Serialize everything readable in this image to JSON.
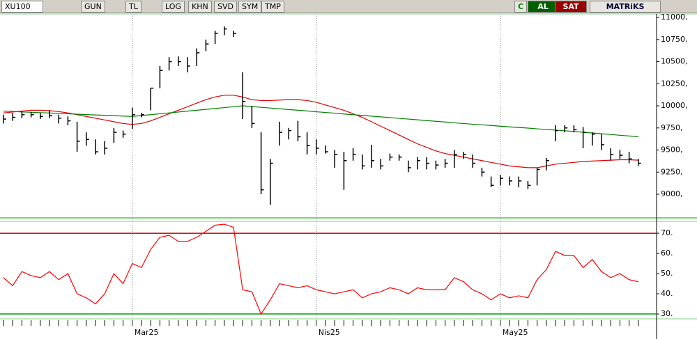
{
  "toolbar": {
    "symbol": "XU100",
    "buttons": [
      "GUN",
      "TL",
      "LOG",
      "KHN",
      "SVD",
      "SYM",
      "TMP"
    ],
    "c": "C",
    "buy": "AL",
    "sell": "SAT",
    "brand": "MATRiKS"
  },
  "chart_data": [
    {
      "type": "ohlc",
      "ylim": [
        8740,
        11040
      ],
      "yticks": [
        {
          "value": 9000,
          "label": "9000,"
        },
        {
          "value": 9250,
          "label": "9250,"
        },
        {
          "value": 9500,
          "label": "9500,"
        },
        {
          "value": 9750,
          "label": "9750,"
        },
        {
          "value": 10000,
          "label": "10000,"
        },
        {
          "value": 10250,
          "label": "10250,"
        },
        {
          "value": 10500,
          "label": "10500,"
        },
        {
          "value": 10750,
          "label": "10750,"
        },
        {
          "value": 11000,
          "label": "11000,"
        }
      ],
      "categories": [
        null,
        null,
        null,
        null,
        null,
        null,
        null,
        null,
        null,
        null,
        null,
        null,
        null,
        null,
        "Mar25",
        null,
        null,
        null,
        null,
        null,
        null,
        null,
        null,
        null,
        null,
        null,
        null,
        null,
        null,
        null,
        null,
        null,
        null,
        null,
        "Nis25",
        null,
        null,
        null,
        null,
        null,
        null,
        null,
        null,
        null,
        null,
        null,
        null,
        null,
        null,
        null,
        null,
        null,
        null,
        null,
        "May25",
        null,
        null,
        null,
        null,
        null,
        null,
        null,
        null,
        null,
        null,
        null,
        null,
        null,
        null,
        null
      ],
      "color": "#000000",
      "high": [
        9900,
        9920,
        9940,
        9930,
        9920,
        9950,
        9900,
        9880,
        9820,
        9700,
        9620,
        9600,
        9750,
        9720,
        9980,
        9920,
        10200,
        10450,
        10550,
        10560,
        10550,
        10650,
        10750,
        10850,
        10900,
        10850,
        10380,
        10000,
        9700,
        9400,
        9820,
        9750,
        9830,
        9700,
        9620,
        9550,
        9500,
        9480,
        9520,
        9450,
        9560,
        9400,
        9460,
        9450,
        9380,
        9420,
        9420,
        9380,
        9400,
        9500,
        9480,
        9450,
        9300,
        9200,
        9220,
        9200,
        9200,
        9150,
        9300,
        9410,
        9780,
        9780,
        9780,
        9760,
        9700,
        9680,
        9520,
        9500,
        9480,
        9400
      ],
      "low": [
        9800,
        9830,
        9860,
        9870,
        9850,
        9860,
        9800,
        9780,
        9480,
        9550,
        9450,
        9450,
        9580,
        9640,
        9740,
        9870,
        9950,
        10200,
        10400,
        10450,
        10380,
        10450,
        10620,
        10700,
        10800,
        10780,
        9850,
        9750,
        9000,
        8880,
        9550,
        9620,
        9600,
        9450,
        9450,
        9460,
        9300,
        9050,
        9380,
        9280,
        9300,
        9280,
        9380,
        9380,
        9250,
        9280,
        9280,
        9280,
        9300,
        9300,
        9400,
        9300,
        9200,
        9080,
        9100,
        9100,
        9080,
        9060,
        9100,
        9270,
        9600,
        9700,
        9700,
        9520,
        9550,
        9500,
        9380,
        9400,
        9350,
        9320
      ],
      "close": [
        9850,
        9870,
        9900,
        9900,
        9880,
        9890,
        9860,
        9830,
        9600,
        9620,
        9480,
        9520,
        9700,
        9680,
        9900,
        9900,
        10200,
        10400,
        10500,
        10500,
        10450,
        10600,
        10700,
        10820,
        10870,
        10820,
        10050,
        9800,
        9050,
        9350,
        9700,
        9720,
        9650,
        9550,
        9520,
        9480,
        9450,
        9380,
        9450,
        9320,
        9380,
        9320,
        9420,
        9420,
        9300,
        9380,
        9350,
        9330,
        9350,
        9450,
        9450,
        9350,
        9250,
        9100,
        9180,
        9150,
        9150,
        9100,
        9280,
        9380,
        9720,
        9750,
        9730,
        9700,
        9680,
        9560,
        9450,
        9440,
        9400,
        9350
      ],
      "lines": [
        {
          "color": "#e00000",
          "values": [
            9920,
            9930,
            9940,
            9950,
            9950,
            9945,
            9935,
            9920,
            9900,
            9880,
            9860,
            9840,
            9820,
            9800,
            9790,
            9800,
            9830,
            9870,
            9910,
            9950,
            9990,
            10030,
            10070,
            10100,
            10120,
            10120,
            10100,
            10070,
            10060,
            10060,
            10065,
            10070,
            10070,
            10060,
            10040,
            10010,
            9980,
            9950,
            9910,
            9870,
            9820,
            9770,
            9720,
            9670,
            9620,
            9570,
            9530,
            9490,
            9460,
            9440,
            9420,
            9400,
            9380,
            9360,
            9340,
            9320,
            9310,
            9300,
            9300,
            9320,
            9340,
            9350,
            9360,
            9370,
            9375,
            9380,
            9385,
            9390,
            9390,
            9385
          ]
        },
        {
          "color": "#008000",
          "values": [
            9940,
            9936,
            9931,
            9927,
            9923,
            9919,
            9914,
            9910,
            9906,
            9901,
            9897,
            9893,
            9889,
            9884,
            9880,
            9890,
            9900,
            9910,
            9920,
            9930,
            9940,
            9950,
            9960,
            9970,
            9980,
            9990,
            10000,
            9992,
            9983,
            9975,
            9967,
            9958,
            9950,
            9942,
            9933,
            9925,
            9917,
            9908,
            9900,
            9892,
            9883,
            9875,
            9867,
            9858,
            9850,
            9842,
            9833,
            9825,
            9817,
            9808,
            9800,
            9792,
            9785,
            9778,
            9770,
            9762,
            9755,
            9748,
            9740,
            9732,
            9725,
            9718,
            9710,
            9701,
            9693,
            9684,
            9676,
            9667,
            9659,
            9650
          ]
        }
      ]
    },
    {
      "type": "line",
      "ylim": [
        27.6,
        75.9
      ],
      "yticks": [
        {
          "value": 30,
          "label": "30."
        },
        {
          "value": 40,
          "label": "40."
        },
        {
          "value": 50,
          "label": "50."
        },
        {
          "value": 60,
          "label": "60."
        },
        {
          "value": 70,
          "label": "70."
        }
      ],
      "levels": [
        {
          "value": 70,
          "color": "#c00000"
        },
        {
          "value": 30,
          "color": "#00a000"
        }
      ],
      "color": "#ff0000",
      "values": [
        48,
        44,
        51,
        49,
        48,
        51,
        47,
        50,
        40,
        38,
        35,
        40,
        50,
        45,
        55,
        53,
        62,
        68,
        69,
        66,
        66,
        68,
        71,
        74,
        74.5,
        73,
        42,
        41,
        30,
        37,
        45,
        44,
        43,
        44,
        42,
        41,
        40,
        41,
        42,
        38,
        40,
        41,
        43,
        42,
        40,
        43,
        42,
        42,
        42,
        48,
        46,
        42,
        40,
        37,
        40,
        38,
        39,
        38,
        47,
        52,
        61,
        59,
        59,
        53,
        57,
        51,
        48,
        50,
        47,
        46
      ]
    }
  ]
}
